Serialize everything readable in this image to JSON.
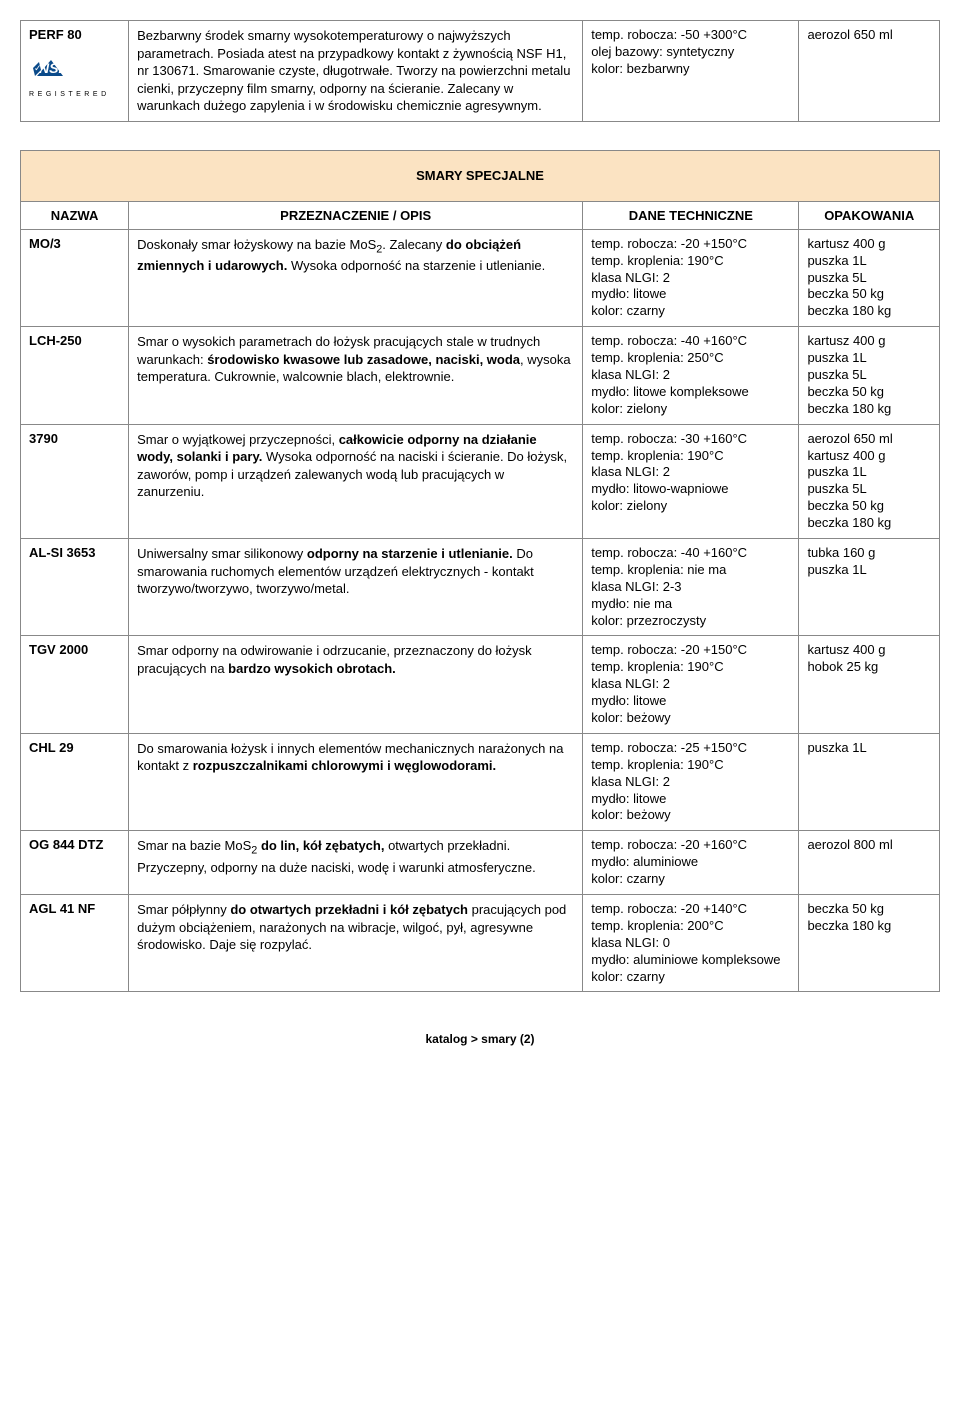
{
  "topRow": {
    "name": "PERF 80",
    "desc": "Bezbarwny środek smarny wysokotemperaturowy o najwyższych parametrach. Posiada atest na przypadkowy kontakt z żywnością NSF H1, nr 130671. Smarowanie czyste, długotrwałe. Tworzy na powierzchni metalu cienki, przyczepny film smarny, odporny na ścieranie. Zalecany w warunkach dużego zapylenia i w środowisku chemicznie agresywnym.",
    "tech": [
      "temp. robocza: -50 +300°C",
      "olej bazowy: syntetyczny",
      "kolor: bezbarwny"
    ],
    "pack": [
      "aerozol 650 ml"
    ],
    "nsf_reg": "R E G I S T E R E D"
  },
  "section_title": "SMARY SPECJALNE",
  "headers": {
    "name": "NAZWA",
    "desc": "PRZEZNACZENIE / OPIS",
    "tech": "DANE TECHNICZNE",
    "pack": "OPAKOWANIA"
  },
  "rows": [
    {
      "name": "MO/3",
      "desc": "Doskonały smar łożyskowy na bazie MoS<sub>2</sub>. Zalecany <b>do obciążeń zmiennych i udarowych.</b> Wysoka odporność na starzenie i utlenianie.",
      "tech": [
        "temp. robocza: -20 +150°C",
        "temp. kroplenia: 190°C",
        "klasa NLGI: 2",
        "mydło: litowe",
        "kolor: czarny"
      ],
      "pack": [
        "kartusz 400 g",
        "puszka 1L",
        "puszka 5L",
        "beczka 50 kg",
        "beczka 180 kg"
      ]
    },
    {
      "name": "LCH-250",
      "desc": "Smar o wysokich parametrach do łożysk  pracujących stale w trudnych warunkach: <b>środowisko kwasowe lub zasadowe, naciski, woda</b>, wysoka temperatura. Cukrownie, walcownie blach, elektrownie.",
      "tech": [
        "temp. robocza: -40 +160°C",
        "temp. kroplenia: 250°C",
        "klasa NLGI: 2",
        "mydło: litowe kompleksowe",
        "kolor: zielony"
      ],
      "pack": [
        "kartusz 400 g",
        "puszka 1L",
        "puszka 5L",
        "beczka 50 kg",
        "beczka 180 kg"
      ]
    },
    {
      "name": "3790",
      "desc": "Smar o wyjątkowej przyczepności, <b>całkowicie odporny na działanie wody, solanki i pary.</b> Wysoka odporność na naciski i ścieranie. Do łożysk, zaworów, pomp i urządzeń zalewanych wodą lub pracujących w zanurzeniu.",
      "tech": [
        "temp. robocza: -30 +160°C",
        "temp. kroplenia: 190°C",
        "klasa NLGI: 2",
        "mydło: litowo-wapniowe",
        "kolor: zielony"
      ],
      "pack": [
        "aerozol 650 ml",
        "kartusz 400 g",
        "puszka 1L",
        "puszka 5L",
        "beczka 50 kg",
        "beczka 180 kg"
      ]
    },
    {
      "name": "AL-SI 3653",
      "desc": "Uniwersalny smar silikonowy <b>odporny na starzenie i utlenianie.</b> Do smarowania ruchomych elementów urządzeń elektrycznych - kontakt tworzywo/tworzywo, tworzywo/metal.",
      "tech": [
        "temp. robocza: -40 +160°C",
        "temp. kroplenia: nie ma",
        "klasa NLGI: 2-3",
        "mydło: nie ma",
        "kolor: przezroczysty"
      ],
      "pack": [
        "tubka 160 g",
        "puszka 1L"
      ]
    },
    {
      "name": "TGV 2000",
      "desc": "Smar odporny na odwirowanie i odrzucanie, przeznaczony do łożysk pracujących na <b>bardzo wysokich obrotach.</b>",
      "tech": [
        "temp. robocza: -20 +150°C",
        "temp. kroplenia: 190°C",
        "klasa NLGI: 2",
        "mydło: litowe",
        "kolor: beżowy"
      ],
      "pack": [
        "kartusz 400 g",
        "hobok 25 kg"
      ]
    },
    {
      "name": "CHL 29",
      "desc": "Do smarowania łożysk i innych elementów mechanicznych narażonych na kontakt z <b>rozpuszczalnikami chlorowymi i węglowodorami.</b>",
      "tech": [
        "temp. robocza: -25 +150°C",
        "temp. kroplenia: 190°C",
        "klasa NLGI: 2",
        "mydło: litowe",
        "kolor: beżowy"
      ],
      "pack": [
        "puszka 1L"
      ]
    },
    {
      "name": "OG 844 DTZ",
      "desc": "Smar na bazie MoS<sub>2</sub> <b>do lin, kół zębatych,</b> otwartych przekładni. Przyczepny, odporny na duże naciski, wodę i warunki atmosferyczne.",
      "tech": [
        "temp. robocza: -20 +160°C",
        "mydło: aluminiowe",
        "kolor: czarny"
      ],
      "pack": [
        "aerozol 800 ml"
      ]
    },
    {
      "name": "AGL 41 NF",
      "desc": "Smar półpłynny <b>do otwartych przekładni i kół zębatych</b> pracujących pod dużym obciążeniem, narażonych na wibracje, wilgoć, pył, agresywne środowisko. Daje się rozpylać.",
      "tech": [
        "temp. robocza: -20 +140°C",
        "temp. kroplenia: 200°C",
        "klasa NLGI: 0",
        "mydło: aluminiowe kompleksowe",
        "kolor: czarny"
      ],
      "pack": [
        "beczka 50 kg",
        "beczka 180 kg"
      ]
    }
  ],
  "footer": "katalog > smary  (2)"
}
